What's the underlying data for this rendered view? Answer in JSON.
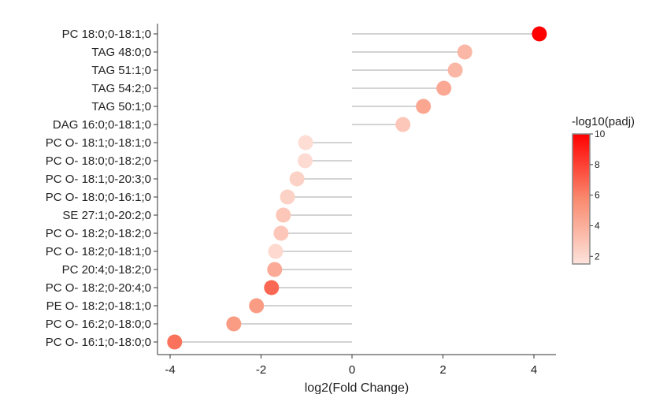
{
  "chart_data": {
    "type": "lollipop",
    "xlabel": "log2(Fold Change)",
    "ylabel": "",
    "xlim": [
      -4.4,
      4.5
    ],
    "xticks": [
      -4,
      -2,
      0,
      2,
      4
    ],
    "x_tick_labels": [
      "-4",
      "-2",
      "0",
      "2",
      "4"
    ],
    "categories": [
      "PC 18:0;0-18:1;0",
      "TAG 48:0;0",
      "TAG 51:1;0",
      "TAG 54:2;0",
      "TAG 50:1;0",
      "DAG 16:0;0-18:1;0",
      "PC O- 18:1;0-18:1;0",
      "PC O- 18:0;0-18:2;0",
      "PC O- 18:1;0-20:3;0",
      "PC O- 18:0;0-16:1;0",
      "SE 27:1;0-20:2;0",
      "PC O- 18:2;0-18:2;0",
      "PC O- 18:2;0-18:1;0",
      "PC 20:4;0-18:2;0",
      "PC O- 18:2;0-20:4;0",
      "PE O- 18:2;0-18:1;0",
      "PC O- 16:2;0-18:0;0",
      "PC O- 16:1;0-18:0;0"
    ],
    "values": [
      4.12,
      2.48,
      2.27,
      2.02,
      1.57,
      1.12,
      -1.02,
      -1.03,
      -1.21,
      -1.42,
      -1.51,
      -1.56,
      -1.68,
      -1.7,
      -1.77,
      -2.1,
      -2.6,
      -3.9
    ],
    "color_values": [
      10.0,
      3.6,
      3.6,
      4.3,
      4.4,
      2.9,
      1.8,
      1.9,
      2.3,
      2.3,
      2.9,
      2.9,
      2.0,
      4.2,
      6.8,
      4.9,
      4.9,
      6.5
    ],
    "color_legend": {
      "title": "-log10(padj)",
      "range": [
        1.5,
        10
      ],
      "ticks": [
        2,
        4,
        6,
        8,
        10
      ],
      "tick_labels": [
        "2",
        "4",
        "6",
        "8",
        "10"
      ],
      "low_color": "#fde3dc",
      "high_color": "#ff0000"
    },
    "stem_color": "#d3d3d3"
  }
}
